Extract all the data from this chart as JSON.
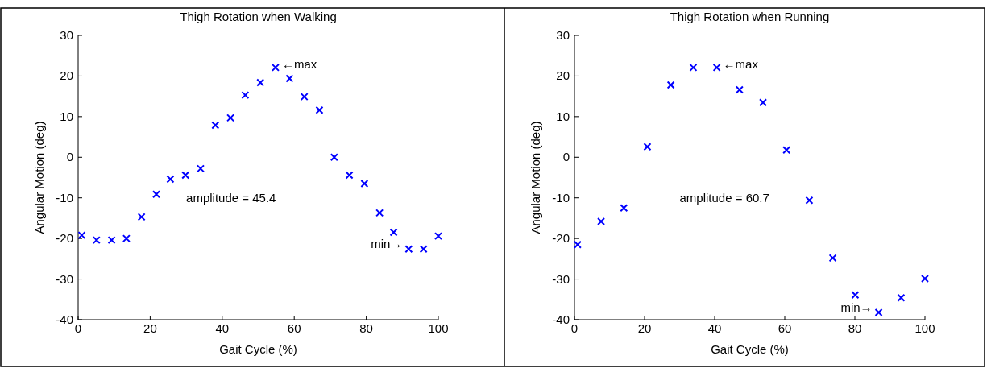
{
  "chart_data": [
    {
      "type": "scatter",
      "title": "Thigh Rotation when Walking",
      "xlabel": "Gait Cycle (%)",
      "ylabel": "Angular Motion (deg)",
      "marker": "cross",
      "grid": false,
      "xlim": [
        0,
        100
      ],
      "ylim": [
        -40,
        30
      ],
      "xticks": [
        0,
        20,
        40,
        60,
        80,
        100
      ],
      "yticks": [
        -40,
        -30,
        -20,
        -10,
        0,
        10,
        20,
        30
      ],
      "annotations": [
        {
          "text": "←max",
          "x": 54.8,
          "y": 22.1
        },
        {
          "text": "min→",
          "x": 91.8,
          "y": -22.6
        },
        "amplitude = 45.4"
      ],
      "series": [
        {
          "color": "#0000ff",
          "x": [
            1.0,
            5.1,
            9.3,
            13.4,
            17.6,
            21.7,
            25.6,
            29.8,
            34.0,
            38.1,
            42.3,
            46.4,
            50.6,
            54.8,
            58.7,
            62.8,
            67.0,
            71.1,
            75.3,
            79.5,
            83.7,
            87.6,
            91.8,
            95.9,
            100
          ],
          "values": [
            -19.2,
            -20.4,
            -20.4,
            -20.0,
            -14.7,
            -9.1,
            -5.4,
            -4.4,
            -2.8,
            7.9,
            9.7,
            15.3,
            18.4,
            22.1,
            19.4,
            14.9,
            11.6,
            0,
            -4.4,
            -6.5,
            -13.7,
            -18.5,
            -22.6,
            -22.6,
            -19.4
          ]
        }
      ]
    },
    {
      "type": "scatter",
      "title": "Thigh Rotation when Running",
      "xlabel": "Gait Cycle (%)",
      "ylabel": "Angular Motion (deg)",
      "marker": "cross",
      "grid": false,
      "xlim": [
        0,
        100
      ],
      "ylim": [
        -40,
        30
      ],
      "xticks": [
        0,
        20,
        40,
        60,
        80,
        100
      ],
      "yticks": [
        -40,
        -30,
        -20,
        -10,
        0,
        10,
        20,
        30
      ],
      "annotations": [
        {
          "text": "←max",
          "x": 40.6,
          "y": 22.1
        },
        {
          "text": "min→",
          "x": 86.8,
          "y": -38.2
        },
        "amplitude = 60.7"
      ],
      "series": [
        {
          "color": "#0000ff",
          "x": [
            0.9,
            7.6,
            14.1,
            20.8,
            27.5,
            33.9,
            40.6,
            47.1,
            53.8,
            60.5,
            67.0,
            73.7,
            80.1,
            86.8,
            93.2,
            100
          ],
          "values": [
            -21.5,
            -15.8,
            -12.5,
            2.6,
            17.8,
            22.1,
            22.1,
            16.6,
            13.5,
            1.8,
            -10.6,
            -24.8,
            -33.9,
            -38.2,
            -34.6,
            -29.9
          ]
        }
      ]
    }
  ]
}
